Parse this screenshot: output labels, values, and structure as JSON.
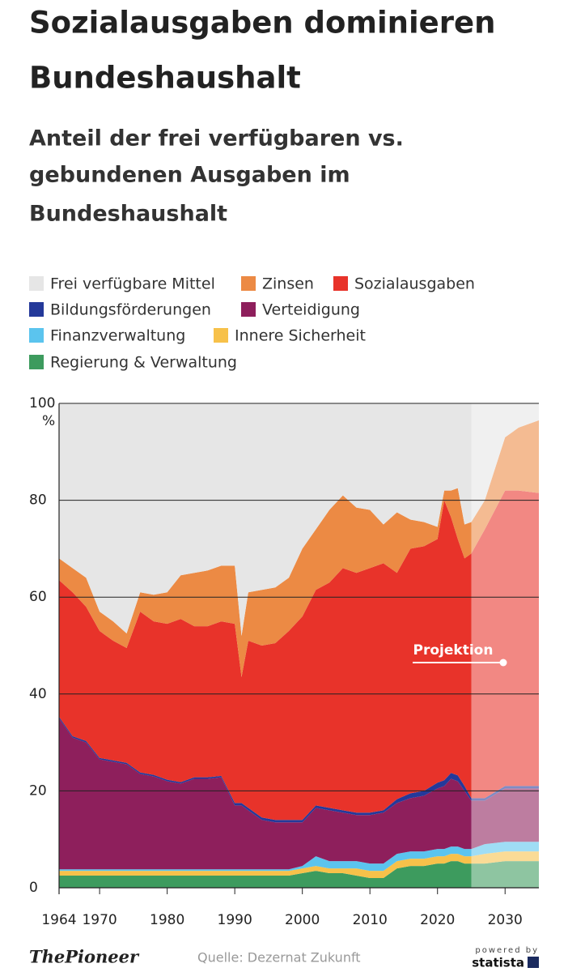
{
  "chart_data": {
    "type": "stacked_area",
    "title_lines": [
      "Sozialausgaben dominieren",
      "Bundeshaushalt"
    ],
    "subtitle_lines": [
      "Anteil der frei verfügbaren vs.",
      "gebundenen Ausgaben im",
      "Bundeshaushalt"
    ],
    "y_unit": "%",
    "annotation": "Projektion",
    "projection_start": 2025,
    "source": "Quelle: Dezernat Zukunft",
    "brand": "ThePioneer",
    "powered_by": "powered by",
    "statista": "statista",
    "x": [
      1964,
      1966,
      1968,
      1970,
      1972,
      1974,
      1976,
      1978,
      1980,
      1982,
      1984,
      1986,
      1988,
      1990,
      1991,
      1992,
      1994,
      1996,
      1998,
      2000,
      2002,
      2004,
      2006,
      2008,
      2010,
      2012,
      2014,
      2016,
      2018,
      2020,
      2021,
      2022,
      2023,
      2024,
      2025,
      2027,
      2030,
      2032,
      2035
    ],
    "xlim": [
      1964,
      2035
    ],
    "xticks": [
      1964,
      1970,
      1980,
      1990,
      2000,
      2010,
      2020,
      2030
    ],
    "ylim": [
      0,
      100
    ],
    "yticks": [
      0,
      20,
      40,
      60,
      80,
      100
    ],
    "grid": true,
    "series": [
      {
        "name": "Frei verfügbare Mittel",
        "color": "#e6e6e6",
        "values": [
          32,
          34,
          36,
          43,
          45,
          47.5,
          39,
          39.5,
          39,
          35.5,
          35,
          34.5,
          33.5,
          33.5,
          48,
          39,
          38.5,
          38,
          36,
          30,
          26,
          22,
          19,
          21.5,
          22,
          25,
          22.5,
          24,
          24.5,
          25.5,
          18,
          18,
          17.5,
          25,
          24.5,
          20,
          7,
          5,
          3.5
        ]
      },
      {
        "name": "Zinsen",
        "color": "#ec8a44",
        "values": [
          4.5,
          5,
          6,
          4,
          4,
          3,
          4,
          5.5,
          6.5,
          9,
          11,
          11.5,
          11.5,
          12,
          8.5,
          10,
          11.5,
          11.5,
          11,
          14,
          12.5,
          15,
          15,
          13.5,
          12,
          8,
          12.5,
          6,
          5,
          2.5,
          2,
          5.5,
          10.5,
          7,
          6.5,
          6,
          11,
          13,
          15
        ]
      },
      {
        "name": "Sozialausgaben",
        "color": "#e8332a",
        "values": [
          28.2,
          29.7,
          27.7,
          26.2,
          24.7,
          23.7,
          33.2,
          31.7,
          32.2,
          33.7,
          31.2,
          31.2,
          31.9,
          37,
          26,
          34.5,
          35.5,
          36.5,
          39,
          42,
          44.5,
          46.5,
          50,
          49.5,
          50.5,
          51,
          46.7,
          50.5,
          50.5,
          50.3,
          57.8,
          52.8,
          48.8,
          47,
          50.5,
          55.5,
          61,
          61,
          60.5
        ]
      },
      {
        "name": "Bildungsförderungen",
        "color": "#24399a",
        "values": [
          0.3,
          0.3,
          0.3,
          0.3,
          0.3,
          0.3,
          0.3,
          0.3,
          0.3,
          0.3,
          0.3,
          0.3,
          0.3,
          0.5,
          0.5,
          0.5,
          0.5,
          0.5,
          0.5,
          0.5,
          0.5,
          0.5,
          0.5,
          0.5,
          0.5,
          0.5,
          0.8,
          1,
          1,
          1.2,
          1.2,
          1.2,
          1.2,
          1,
          0.5,
          0.5,
          0.5,
          0.5,
          0.5
        ]
      },
      {
        "name": "Verteidigung",
        "color": "#8e1f5c",
        "values": [
          31.2,
          27.2,
          26.2,
          22.7,
          22.2,
          21.7,
          19.7,
          19.2,
          18.2,
          17.7,
          18.7,
          18.7,
          19,
          13.2,
          13.2,
          12.2,
          10.2,
          9.7,
          9.7,
          9,
          10,
          10.5,
          10,
          9.5,
          10,
          10.5,
          10.5,
          11,
          11.5,
          12.5,
          13,
          14,
          13.5,
          12,
          10,
          9,
          11,
          11,
          11
        ]
      },
      {
        "name": "Finanzverwaltung",
        "color": "#5bc4ee",
        "values": [
          0.3,
          0.3,
          0.3,
          0.3,
          0.3,
          0.3,
          0.3,
          0.3,
          0.3,
          0.3,
          0.3,
          0.3,
          0.3,
          0.3,
          0.3,
          0.3,
          0.3,
          0.3,
          0.3,
          0.5,
          2,
          1.5,
          1.5,
          1.5,
          1.5,
          1.5,
          1.5,
          1.5,
          1.5,
          1.5,
          1.5,
          1.5,
          1.5,
          1.5,
          1.5,
          2,
          2,
          2,
          2
        ]
      },
      {
        "name": "Innere Sicherheit",
        "color": "#f7c14a",
        "values": [
          1,
          1,
          1,
          1,
          1,
          1,
          1,
          1,
          1,
          1,
          1,
          1,
          1,
          1,
          1,
          1,
          1,
          1,
          1,
          1,
          1,
          1,
          1,
          1.5,
          1.5,
          1.5,
          1.5,
          1.5,
          1.5,
          1.5,
          1.5,
          1.5,
          1.5,
          1.5,
          1.5,
          2,
          2,
          2,
          2
        ]
      },
      {
        "name": "Regierung & Verwaltung",
        "color": "#3d9b5e",
        "values": [
          2.5,
          2.5,
          2.5,
          2.5,
          2.5,
          2.5,
          2.5,
          2.5,
          2.5,
          2.5,
          2.5,
          2.5,
          2.5,
          2.5,
          2.5,
          2.5,
          2.5,
          2.5,
          2.5,
          3,
          3.5,
          3,
          3,
          2.5,
          2,
          2,
          4,
          4.5,
          4.5,
          5,
          5,
          5.5,
          5.5,
          5,
          5,
          5,
          5.5,
          5.5,
          5.5
        ]
      }
    ]
  }
}
